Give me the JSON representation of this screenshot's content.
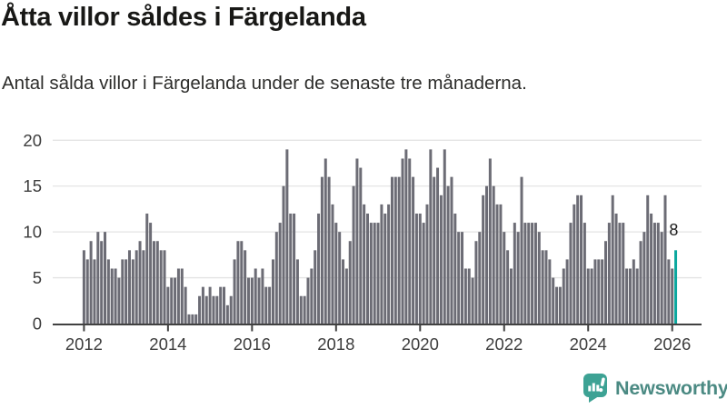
{
  "header": {
    "title": "Åtta villor såldes i Färgelanda",
    "subtitle": "Antal sålda villor i Färgelanda under de senaste tre månaderna."
  },
  "colors": {
    "bar": "#6c6c75",
    "highlight": "#0ba79e",
    "grid": "#e4e4e4",
    "axis": "#414141",
    "tick_text": "#3d3d3d",
    "annotation_text": "#1c1c1c",
    "brand_teal": "#3da294",
    "brand_text": "#4b8a83"
  },
  "chart_data": {
    "type": "bar",
    "title": "Åtta villor såldes i Färgelanda",
    "subtitle": "Antal sålda villor i Färgelanda under de senaste tre månaderna.",
    "xlabel": "",
    "ylabel": "",
    "x_unit": "month",
    "x_start": "2012-01",
    "x_end": "2026-02",
    "xticks": [
      2012,
      2014,
      2016,
      2018,
      2020,
      2022,
      2024,
      2026
    ],
    "ylim": [
      0,
      20
    ],
    "yticks": [
      0,
      5,
      10,
      15,
      20
    ],
    "grid": true,
    "legend": false,
    "series": [
      {
        "name": "Antal sålda villor",
        "values": [
          8,
          7,
          9,
          7,
          10,
          9,
          10,
          7,
          6,
          6,
          5,
          7,
          7,
          8,
          7,
          8,
          9,
          8,
          12,
          11,
          9,
          9,
          8,
          8,
          4,
          5,
          5,
          6,
          6,
          4,
          1,
          1,
          1,
          3,
          4,
          3,
          4,
          3,
          3,
          4,
          4,
          2,
          3,
          7,
          9,
          9,
          8,
          5,
          5,
          6,
          5,
          6,
          4,
          4,
          7,
          10,
          11,
          15,
          19,
          12,
          12,
          7,
          3,
          3,
          5,
          6,
          8,
          12,
          16,
          18,
          16,
          13,
          11,
          10,
          7,
          6,
          9,
          15,
          18,
          17,
          13,
          12,
          11,
          11,
          11,
          13,
          12,
          13,
          16,
          16,
          16,
          18,
          19,
          18,
          16,
          12,
          12,
          11,
          13,
          19,
          16,
          17,
          14,
          19,
          15,
          16,
          12,
          10,
          10,
          6,
          6,
          5,
          9,
          10,
          14,
          15,
          18,
          15,
          13,
          13,
          10,
          8,
          6,
          11,
          10,
          16,
          11,
          11,
          11,
          11,
          10,
          8,
          8,
          7,
          5,
          4,
          4,
          6,
          7,
          11,
          13,
          14,
          14,
          11,
          6,
          6,
          7,
          7,
          7,
          9,
          11,
          14,
          12,
          11,
          11,
          6,
          6,
          7,
          6,
          9,
          10,
          14,
          12,
          11,
          11,
          10,
          14,
          7,
          6,
          8
        ]
      }
    ],
    "highlight_last": {
      "value": 8,
      "label": "8"
    }
  },
  "footer": {
    "brand": "Newsworthy"
  }
}
